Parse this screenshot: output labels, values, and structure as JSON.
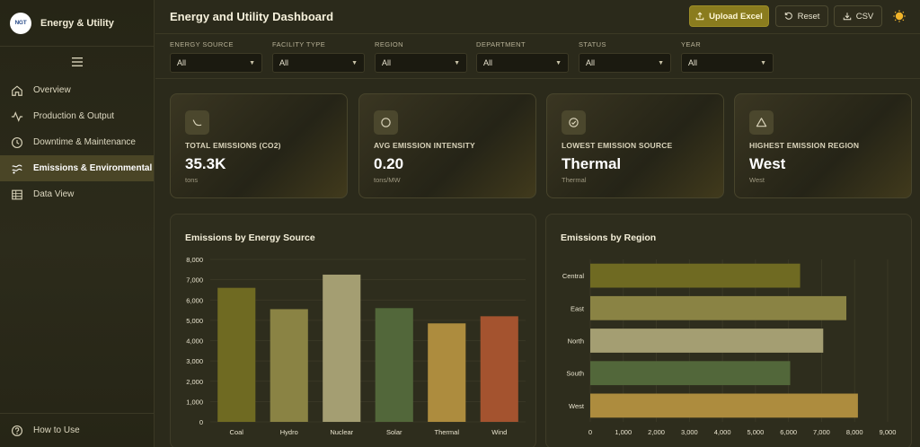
{
  "app": {
    "brand_title": "Energy & Utility",
    "logo_text": "NGT"
  },
  "sidebar": {
    "items": [
      {
        "label": "Overview",
        "icon": "home-icon",
        "active": false
      },
      {
        "label": "Production & Output",
        "icon": "activity-icon",
        "active": false
      },
      {
        "label": "Downtime & Maintenance",
        "icon": "clock-icon",
        "active": false
      },
      {
        "label": "Emissions & Environmental",
        "icon": "emissions-icon",
        "active": true
      },
      {
        "label": "Data View",
        "icon": "table-icon",
        "active": false
      }
    ],
    "help_label": "How to Use"
  },
  "header": {
    "title": "Energy and Utility Dashboard",
    "upload_label": "Upload Excel",
    "reset_label": "Reset",
    "csv_label": "CSV"
  },
  "filters": [
    {
      "label": "ENERGY SOURCE",
      "value": "All"
    },
    {
      "label": "FACILITY TYPE",
      "value": "All"
    },
    {
      "label": "REGION",
      "value": "All"
    },
    {
      "label": "DEPARTMENT",
      "value": "All"
    },
    {
      "label": "STATUS",
      "value": "All"
    },
    {
      "label": "YEAR",
      "value": "All"
    }
  ],
  "kpis": [
    {
      "label": "TOTAL EMISSIONS (CO2)",
      "value": "35.3K",
      "sub": "tons",
      "icon": "trend-down-icon"
    },
    {
      "label": "AVG EMISSION INTENSITY",
      "value": "0.20",
      "sub": "tons/MW",
      "icon": "circle-icon"
    },
    {
      "label": "LOWEST EMISSION SOURCE",
      "value": "Thermal",
      "sub": "Thermal",
      "icon": "check-circle-icon"
    },
    {
      "label": "HIGHEST EMISSION REGION",
      "value": "West",
      "sub": "West",
      "icon": "triangle-icon"
    }
  ],
  "colors": {
    "accent": "#8a7c1e",
    "background": "#2b2a1b"
  },
  "chart_data": [
    {
      "type": "bar",
      "title": "Emissions by Energy Source",
      "categories": [
        "Coal",
        "Hydro",
        "Nuclear",
        "Solar",
        "Thermal",
        "Wind"
      ],
      "values": [
        6600,
        5550,
        7250,
        5600,
        4850,
        5200
      ],
      "colors": [
        "#6f6a22",
        "#8a8344",
        "#a49e72",
        "#52673a",
        "#ad8c3e",
        "#a4532f"
      ],
      "ylim": [
        0,
        8000
      ],
      "yticks": [
        "0",
        "1,000",
        "2,000",
        "3,000",
        "4,000",
        "5,000",
        "6,000",
        "7,000",
        "8,000"
      ],
      "grid": true
    },
    {
      "type": "bar",
      "orientation": "horizontal",
      "title": "Emissions by Region",
      "categories": [
        "Central",
        "East",
        "North",
        "South",
        "West"
      ],
      "values": [
        6350,
        7750,
        7050,
        6050,
        8100
      ],
      "colors": [
        "#6f6a22",
        "#8a8344",
        "#a49e72",
        "#52673a",
        "#ad8c3e"
      ],
      "xlim": [
        0,
        9000
      ],
      "xticks": [
        "0",
        "1,000",
        "2,000",
        "3,000",
        "4,000",
        "5,000",
        "6,000",
        "7,000",
        "8,000",
        "9,000"
      ],
      "grid": true
    }
  ]
}
